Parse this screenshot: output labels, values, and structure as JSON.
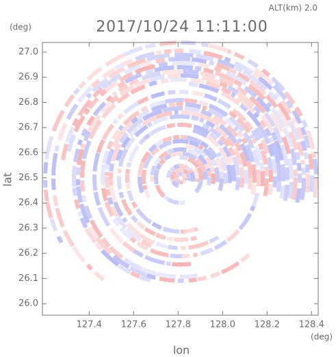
{
  "chart_data": {
    "type": "radar-ppi",
    "title": "2017/10/24 11:11:00",
    "annotation": "ALT(km) 2.0",
    "x_label": "lon",
    "y_label": "lat",
    "x_unit": "(deg)",
    "y_unit": "(deg)",
    "xlim": [
      127.19,
      128.43
    ],
    "xticks": [
      127.4,
      127.6,
      127.8,
      {
        "value": 128.0,
        "label": "128.0"
      },
      128.2,
      128.4
    ],
    "ylim": [
      25.954,
      27.038
    ],
    "yticks": [
      {
        "value": 26.0,
        "label": "26.0"
      },
      26.1,
      26.2,
      26.3,
      26.4,
      26.5,
      26.6,
      26.7,
      26.8,
      26.9,
      {
        "value": 27.0,
        "label": "27.0"
      }
    ],
    "colors": [
      "#f5a3a3",
      "#a9adf3"
    ]
  }
}
